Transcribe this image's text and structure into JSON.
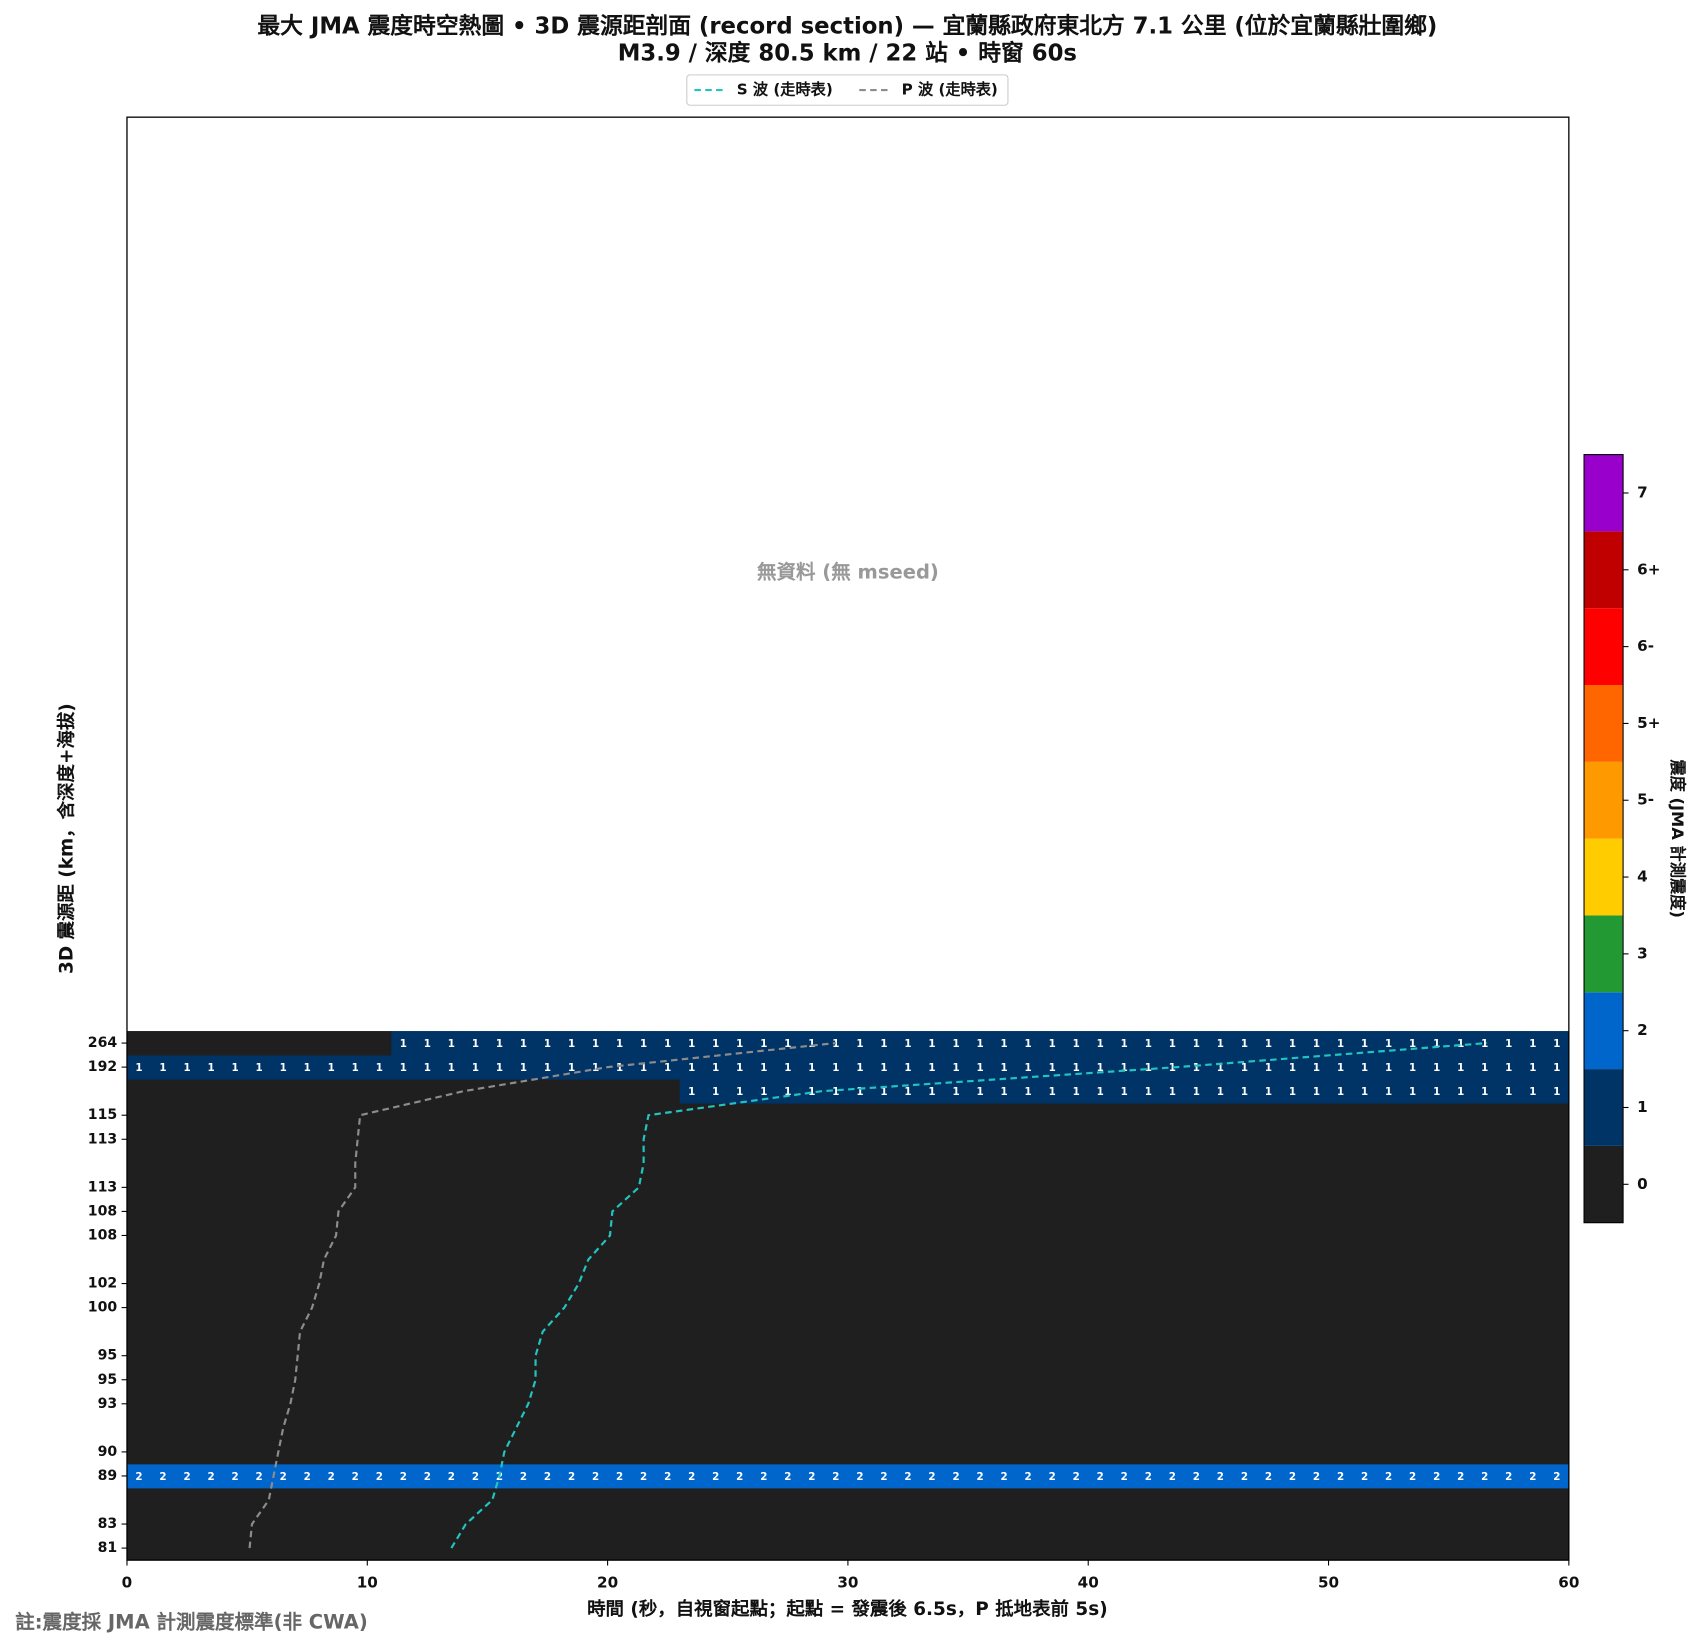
{
  "chart_data": {
    "type": "heatmap",
    "title": "最大 JMA 震度時空熱圖 • 3D 震源距剖面 (record section) — 宜蘭縣政府東北方  7.1  公里 (位於宜蘭縣壯圍鄉)",
    "subtitle": "M3.9 / 深度 80.5 km / 22 站 • 時窗 60s",
    "xlabel": "時間 (秒，自視窗起點；起點 = 發震後 6.5s，P 抵地表前 5s)",
    "ylabel": "3D 震源距 (km，含深度+海拔)",
    "annotation": "無資料 (無 mseed)",
    "note": "註:震度採 JMA 計測震度標準(非 CWA)",
    "xlim": [
      0,
      60
    ],
    "xticks": [
      0,
      10,
      20,
      30,
      40,
      50,
      60
    ],
    "ylim": [
      -0.5,
      59.5
    ],
    "rows": [
      81,
      83,
      null,
      89,
      90,
      null,
      93,
      95,
      95,
      null,
      100,
      102,
      null,
      108,
      108,
      113,
      null,
      113,
      115,
      null,
      192,
      264
    ],
    "values": [
      [
        0,
        0,
        0,
        0,
        0,
        0,
        0,
        0,
        0,
        0,
        0,
        0,
        0,
        0,
        0,
        0,
        0,
        0,
        0,
        0,
        0,
        0,
        0,
        0,
        0,
        0,
        0,
        0,
        0,
        0,
        0,
        0,
        0,
        0,
        0,
        0,
        0,
        0,
        0,
        0,
        0,
        0,
        0,
        0,
        0,
        0,
        0,
        0,
        0,
        0,
        0,
        0,
        0,
        0,
        0,
        0,
        0,
        0,
        0,
        0
      ],
      [
        0,
        0,
        0,
        0,
        0,
        0,
        0,
        0,
        0,
        0,
        0,
        0,
        0,
        0,
        0,
        0,
        0,
        0,
        0,
        0,
        0,
        0,
        0,
        0,
        0,
        0,
        0,
        0,
        0,
        0,
        0,
        0,
        0,
        0,
        0,
        0,
        0,
        0,
        0,
        0,
        0,
        0,
        0,
        0,
        0,
        0,
        0,
        0,
        0,
        0,
        0,
        0,
        0,
        0,
        0,
        0,
        0,
        0,
        0,
        0
      ],
      [
        0,
        0,
        0,
        0,
        0,
        0,
        0,
        0,
        0,
        0,
        0,
        0,
        0,
        0,
        0,
        0,
        0,
        0,
        0,
        0,
        0,
        0,
        0,
        0,
        0,
        0,
        0,
        0,
        0,
        0,
        0,
        0,
        0,
        0,
        0,
        0,
        0,
        0,
        0,
        0,
        0,
        0,
        0,
        0,
        0,
        0,
        0,
        0,
        0,
        0,
        0,
        0,
        0,
        0,
        0,
        0,
        0,
        0,
        0,
        0
      ],
      [
        2,
        2,
        2,
        2,
        2,
        2,
        2,
        2,
        2,
        2,
        2,
        2,
        2,
        2,
        2,
        2,
        2,
        2,
        2,
        2,
        2,
        2,
        2,
        2,
        2,
        2,
        2,
        2,
        2,
        2,
        2,
        2,
        2,
        2,
        2,
        2,
        2,
        2,
        2,
        2,
        2,
        2,
        2,
        2,
        2,
        2,
        2,
        2,
        2,
        2,
        2,
        2,
        2,
        2,
        2,
        2,
        2,
        2,
        2,
        2
      ],
      [
        0,
        0,
        0,
        0,
        0,
        0,
        0,
        0,
        0,
        0,
        0,
        0,
        0,
        0,
        0,
        0,
        0,
        0,
        0,
        0,
        0,
        0,
        0,
        0,
        0,
        0,
        0,
        0,
        0,
        0,
        0,
        0,
        0,
        0,
        0,
        0,
        0,
        0,
        0,
        0,
        0,
        0,
        0,
        0,
        0,
        0,
        0,
        0,
        0,
        0,
        0,
        0,
        0,
        0,
        0,
        0,
        0,
        0,
        0,
        0
      ],
      [
        0,
        0,
        0,
        0,
        0,
        0,
        0,
        0,
        0,
        0,
        0,
        0,
        0,
        0,
        0,
        0,
        0,
        0,
        0,
        0,
        0,
        0,
        0,
        0,
        0,
        0,
        0,
        0,
        0,
        0,
        0,
        0,
        0,
        0,
        0,
        0,
        0,
        0,
        0,
        0,
        0,
        0,
        0,
        0,
        0,
        0,
        0,
        0,
        0,
        0,
        0,
        0,
        0,
        0,
        0,
        0,
        0,
        0,
        0,
        0
      ],
      [
        0,
        0,
        0,
        0,
        0,
        0,
        0,
        0,
        0,
        0,
        0,
        0,
        0,
        0,
        0,
        0,
        0,
        0,
        0,
        0,
        0,
        0,
        0,
        0,
        0,
        0,
        0,
        0,
        0,
        0,
        0,
        0,
        0,
        0,
        0,
        0,
        0,
        0,
        0,
        0,
        0,
        0,
        0,
        0,
        0,
        0,
        0,
        0,
        0,
        0,
        0,
        0,
        0,
        0,
        0,
        0,
        0,
        0,
        0,
        0
      ],
      [
        0,
        0,
        0,
        0,
        0,
        0,
        0,
        0,
        0,
        0,
        0,
        0,
        0,
        0,
        0,
        0,
        0,
        0,
        0,
        0,
        0,
        0,
        0,
        0,
        0,
        0,
        0,
        0,
        0,
        0,
        0,
        0,
        0,
        0,
        0,
        0,
        0,
        0,
        0,
        0,
        0,
        0,
        0,
        0,
        0,
        0,
        0,
        0,
        0,
        0,
        0,
        0,
        0,
        0,
        0,
        0,
        0,
        0,
        0,
        0
      ],
      [
        0,
        0,
        0,
        0,
        0,
        0,
        0,
        0,
        0,
        0,
        0,
        0,
        0,
        0,
        0,
        0,
        0,
        0,
        0,
        0,
        0,
        0,
        0,
        0,
        0,
        0,
        0,
        0,
        0,
        0,
        0,
        0,
        0,
        0,
        0,
        0,
        0,
        0,
        0,
        0,
        0,
        0,
        0,
        0,
        0,
        0,
        0,
        0,
        0,
        0,
        0,
        0,
        0,
        0,
        0,
        0,
        0,
        0,
        0,
        0
      ],
      [
        0,
        0,
        0,
        0,
        0,
        0,
        0,
        0,
        0,
        0,
        0,
        0,
        0,
        0,
        0,
        0,
        0,
        0,
        0,
        0,
        0,
        0,
        0,
        0,
        0,
        0,
        0,
        0,
        0,
        0,
        0,
        0,
        0,
        0,
        0,
        0,
        0,
        0,
        0,
        0,
        0,
        0,
        0,
        0,
        0,
        0,
        0,
        0,
        0,
        0,
        0,
        0,
        0,
        0,
        0,
        0,
        0,
        0,
        0,
        0
      ],
      [
        0,
        0,
        0,
        0,
        0,
        0,
        0,
        0,
        0,
        0,
        0,
        0,
        0,
        0,
        0,
        0,
        0,
        0,
        0,
        0,
        0,
        0,
        0,
        0,
        0,
        0,
        0,
        0,
        0,
        0,
        0,
        0,
        0,
        0,
        0,
        0,
        0,
        0,
        0,
        0,
        0,
        0,
        0,
        0,
        0,
        0,
        0,
        0,
        0,
        0,
        0,
        0,
        0,
        0,
        0,
        0,
        0,
        0,
        0,
        0
      ],
      [
        0,
        0,
        0,
        0,
        0,
        0,
        0,
        0,
        0,
        0,
        0,
        0,
        0,
        0,
        0,
        0,
        0,
        0,
        0,
        0,
        0,
        0,
        0,
        0,
        0,
        0,
        0,
        0,
        0,
        0,
        0,
        0,
        0,
        0,
        0,
        0,
        0,
        0,
        0,
        0,
        0,
        0,
        0,
        0,
        0,
        0,
        0,
        0,
        0,
        0,
        0,
        0,
        0,
        0,
        0,
        0,
        0,
        0,
        0,
        0
      ],
      [
        0,
        0,
        0,
        0,
        0,
        0,
        0,
        0,
        0,
        0,
        0,
        0,
        0,
        0,
        0,
        0,
        0,
        0,
        0,
        0,
        0,
        0,
        0,
        0,
        0,
        0,
        0,
        0,
        0,
        0,
        0,
        0,
        0,
        0,
        0,
        0,
        0,
        0,
        0,
        0,
        0,
        0,
        0,
        0,
        0,
        0,
        0,
        0,
        0,
        0,
        0,
        0,
        0,
        0,
        0,
        0,
        0,
        0,
        0,
        0
      ],
      [
        0,
        0,
        0,
        0,
        0,
        0,
        0,
        0,
        0,
        0,
        0,
        0,
        0,
        0,
        0,
        0,
        0,
        0,
        0,
        0,
        0,
        0,
        0,
        0,
        0,
        0,
        0,
        0,
        0,
        0,
        0,
        0,
        0,
        0,
        0,
        0,
        0,
        0,
        0,
        0,
        0,
        0,
        0,
        0,
        0,
        0,
        0,
        0,
        0,
        0,
        0,
        0,
        0,
        0,
        0,
        0,
        0,
        0,
        0,
        0
      ],
      [
        0,
        0,
        0,
        0,
        0,
        0,
        0,
        0,
        0,
        0,
        0,
        0,
        0,
        0,
        0,
        0,
        0,
        0,
        0,
        0,
        0,
        0,
        0,
        0,
        0,
        0,
        0,
        0,
        0,
        0,
        0,
        0,
        0,
        0,
        0,
        0,
        0,
        0,
        0,
        0,
        0,
        0,
        0,
        0,
        0,
        0,
        0,
        0,
        0,
        0,
        0,
        0,
        0,
        0,
        0,
        0,
        0,
        0,
        0,
        0
      ],
      [
        0,
        0,
        0,
        0,
        0,
        0,
        0,
        0,
        0,
        0,
        0,
        0,
        0,
        0,
        0,
        0,
        0,
        0,
        0,
        0,
        0,
        0,
        0,
        0,
        0,
        0,
        0,
        0,
        0,
        0,
        0,
        0,
        0,
        0,
        0,
        0,
        0,
        0,
        0,
        0,
        0,
        0,
        0,
        0,
        0,
        0,
        0,
        0,
        0,
        0,
        0,
        0,
        0,
        0,
        0,
        0,
        0,
        0,
        0,
        0
      ],
      [
        0,
        0,
        0,
        0,
        0,
        0,
        0,
        0,
        0,
        0,
        0,
        0,
        0,
        0,
        0,
        0,
        0,
        0,
        0,
        0,
        0,
        0,
        0,
        0,
        0,
        0,
        0,
        0,
        0,
        0,
        0,
        0,
        0,
        0,
        0,
        0,
        0,
        0,
        0,
        0,
        0,
        0,
        0,
        0,
        0,
        0,
        0,
        0,
        0,
        0,
        0,
        0,
        0,
        0,
        0,
        0,
        0,
        0,
        0,
        0
      ],
      [
        0,
        0,
        0,
        0,
        0,
        0,
        0,
        0,
        0,
        0,
        0,
        0,
        0,
        0,
        0,
        0,
        0,
        0,
        0,
        0,
        0,
        0,
        0,
        0,
        0,
        0,
        0,
        0,
        0,
        0,
        0,
        0,
        0,
        0,
        0,
        0,
        0,
        0,
        0,
        0,
        0,
        0,
        0,
        0,
        0,
        0,
        0,
        0,
        0,
        0,
        0,
        0,
        0,
        0,
        0,
        0,
        0,
        0,
        0,
        0
      ],
      [
        0,
        0,
        0,
        0,
        0,
        0,
        0,
        0,
        0,
        0,
        0,
        0,
        0,
        0,
        0,
        0,
        0,
        0,
        0,
        0,
        0,
        0,
        0,
        0,
        0,
        0,
        0,
        0,
        0,
        0,
        0,
        0,
        0,
        0,
        0,
        0,
        0,
        0,
        0,
        0,
        0,
        0,
        0,
        0,
        0,
        0,
        0,
        0,
        0,
        0,
        0,
        0,
        0,
        0,
        0,
        0,
        0,
        0,
        0,
        0
      ],
      [
        0,
        0,
        0,
        0,
        0,
        0,
        0,
        0,
        0,
        0,
        0,
        0,
        0,
        0,
        0,
        0,
        0,
        0,
        0,
        0,
        0,
        0,
        0,
        1,
        1,
        1,
        1,
        1,
        1,
        1,
        1,
        1,
        1,
        1,
        1,
        1,
        1,
        1,
        1,
        1,
        1,
        1,
        1,
        1,
        1,
        1,
        1,
        1,
        1,
        1,
        1,
        1,
        1,
        1,
        1,
        1,
        1,
        1,
        1,
        1
      ],
      [
        1,
        1,
        1,
        1,
        1,
        1,
        1,
        1,
        1,
        1,
        1,
        1,
        1,
        1,
        1,
        1,
        1,
        1,
        1,
        1,
        1,
        1,
        1,
        1,
        1,
        1,
        1,
        1,
        1,
        1,
        1,
        1,
        1,
        1,
        1,
        1,
        1,
        1,
        1,
        1,
        1,
        1,
        1,
        1,
        1,
        1,
        1,
        1,
        1,
        1,
        1,
        1,
        1,
        1,
        1,
        1,
        1,
        1,
        1,
        1
      ],
      [
        0,
        0,
        0,
        0,
        0,
        0,
        0,
        0,
        0,
        0,
        0,
        1,
        1,
        1,
        1,
        1,
        1,
        1,
        1,
        1,
        1,
        1,
        1,
        1,
        1,
        1,
        1,
        1,
        1,
        1,
        1,
        1,
        1,
        1,
        1,
        1,
        1,
        1,
        1,
        1,
        1,
        1,
        1,
        1,
        1,
        1,
        1,
        1,
        1,
        1,
        1,
        1,
        1,
        1,
        1,
        1,
        1,
        1,
        1,
        1
      ]
    ],
    "series": [
      {
        "name": "S 波 (走時表)",
        "color": "#22c4c0",
        "values": [
          13.5,
          14.1,
          15.2,
          15.5,
          15.7,
          16.2,
          16.7,
          17.0,
          17.0,
          17.3,
          18.2,
          18.8,
          19.2,
          20.1,
          20.2,
          21.3,
          21.5,
          21.5,
          21.7,
          28.9,
          43.7,
          56.6
        ]
      },
      {
        "name": "P 波 (走時表)",
        "color": "#8c8c8c",
        "values": [
          5.1,
          5.2,
          5.9,
          6.1,
          6.3,
          6.5,
          6.8,
          7.0,
          7.1,
          7.2,
          7.7,
          8.0,
          8.2,
          8.7,
          8.8,
          9.5,
          9.5,
          9.6,
          9.7,
          14.0,
          20.0,
          29.5
        ]
      }
    ],
    "colorbar": {
      "label": "震度 (JMA 計測震度)",
      "ticks": [
        "0",
        "1",
        "2",
        "3",
        "4",
        "5-",
        "5+",
        "6-",
        "6+",
        "7"
      ],
      "colors": [
        "#1f1f1f",
        "#003366",
        "#0066cc",
        "#229933",
        "#ffcc00",
        "#ff9900",
        "#ff6600",
        "#ff0000",
        "#c00000",
        "#9900cc"
      ]
    }
  }
}
